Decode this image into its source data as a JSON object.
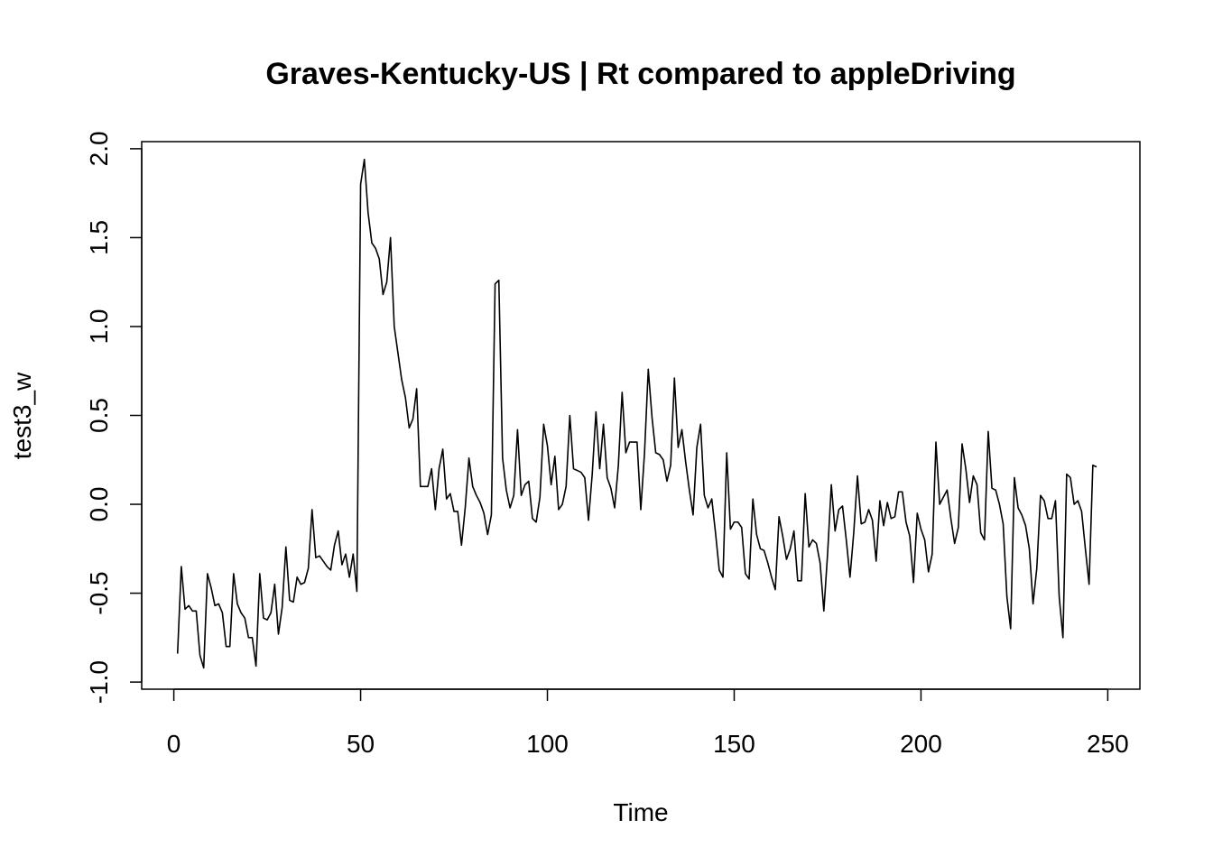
{
  "chart_data": {
    "type": "line",
    "title": "Graves-Kentucky-US | Rt compared to appleDriving",
    "xlabel": "Time",
    "ylabel": "test3_w",
    "xlim": [
      -8.6,
      258.6
    ],
    "ylim": [
      -1.04,
      2.04
    ],
    "x_ticks": [
      0,
      50,
      100,
      150,
      200,
      250
    ],
    "y_ticks": [
      -1.0,
      -0.5,
      0.0,
      0.5,
      1.0,
      1.5,
      2.0
    ],
    "x_tick_labels": [
      "0",
      "50",
      "100",
      "150",
      "200",
      "250"
    ],
    "y_tick_labels": [
      "-1.0",
      "-0.5",
      "0.0",
      "0.5",
      "1.0",
      "1.5",
      "2.0"
    ],
    "grid": false,
    "line_color": "#000000",
    "series": [
      {
        "x_start": 1,
        "values": [
          -0.84,
          -0.35,
          -0.59,
          -0.57,
          -0.6,
          -0.6,
          -0.85,
          -0.92,
          -0.39,
          -0.47,
          -0.57,
          -0.56,
          -0.61,
          -0.8,
          -0.8,
          -0.39,
          -0.56,
          -0.61,
          -0.64,
          -0.75,
          -0.75,
          -0.91,
          -0.39,
          -0.64,
          -0.65,
          -0.61,
          -0.45,
          -0.73,
          -0.58,
          -0.24,
          -0.54,
          -0.55,
          -0.41,
          -0.45,
          -0.44,
          -0.36,
          -0.03,
          -0.3,
          -0.29,
          -0.32,
          -0.35,
          -0.37,
          -0.23,
          -0.15,
          -0.34,
          -0.28,
          -0.41,
          -0.28,
          -0.49,
          1.8,
          1.94,
          1.64,
          1.47,
          1.44,
          1.38,
          1.18,
          1.25,
          1.5,
          1.0,
          0.85,
          0.7,
          0.6,
          0.43,
          0.48,
          0.65,
          0.1,
          0.1,
          0.1,
          0.2,
          -0.03,
          0.2,
          0.31,
          0.03,
          0.06,
          -0.04,
          -0.04,
          -0.23,
          -0.02,
          0.26,
          0.1,
          0.05,
          0.01,
          -0.05,
          -0.17,
          -0.06,
          1.24,
          1.26,
          0.26,
          0.08,
          -0.02,
          0.05,
          0.42,
          0.05,
          0.11,
          0.13,
          -0.08,
          -0.1,
          0.04,
          0.45,
          0.33,
          0.11,
          0.27,
          -0.03,
          0.0,
          0.1,
          0.5,
          0.2,
          0.19,
          0.18,
          0.15,
          -0.09,
          0.17,
          0.52,
          0.2,
          0.45,
          0.15,
          0.09,
          -0.02,
          0.22,
          0.63,
          0.29,
          0.35,
          0.35,
          0.35,
          -0.03,
          0.29,
          0.76,
          0.49,
          0.29,
          0.28,
          0.25,
          0.13,
          0.22,
          0.71,
          0.32,
          0.42,
          0.24,
          0.08,
          -0.06,
          0.32,
          0.45,
          0.05,
          -0.02,
          0.03,
          -0.16,
          -0.37,
          -0.41,
          0.29,
          -0.14,
          -0.1,
          -0.1,
          -0.13,
          -0.39,
          -0.42,
          0.03,
          -0.17,
          -0.25,
          -0.26,
          -0.33,
          -0.41,
          -0.48,
          -0.07,
          -0.18,
          -0.31,
          -0.25,
          -0.15,
          -0.43,
          -0.43,
          0.06,
          -0.24,
          -0.2,
          -0.22,
          -0.33,
          -0.6,
          -0.28,
          0.11,
          -0.15,
          -0.03,
          -0.01,
          -0.2,
          -0.41,
          -0.16,
          0.16,
          -0.11,
          -0.1,
          -0.03,
          -0.09,
          -0.32,
          0.02,
          -0.12,
          0.01,
          -0.08,
          -0.07,
          0.07,
          0.07,
          -0.1,
          -0.18,
          -0.44,
          -0.05,
          -0.14,
          -0.2,
          -0.38,
          -0.28,
          0.35,
          0.0,
          0.04,
          0.08,
          -0.08,
          -0.22,
          -0.13,
          0.34,
          0.2,
          0.01,
          0.16,
          0.11,
          -0.16,
          -0.2,
          0.41,
          0.09,
          0.08,
          0.0,
          -0.11,
          -0.52,
          -0.7,
          0.15,
          -0.02,
          -0.06,
          -0.12,
          -0.25,
          -0.56,
          -0.36,
          0.05,
          0.02,
          -0.08,
          -0.08,
          0.02,
          -0.52,
          -0.75,
          0.17,
          0.15,
          0.0,
          0.02,
          -0.04,
          -0.25,
          -0.45,
          0.22,
          0.21
        ]
      }
    ]
  }
}
